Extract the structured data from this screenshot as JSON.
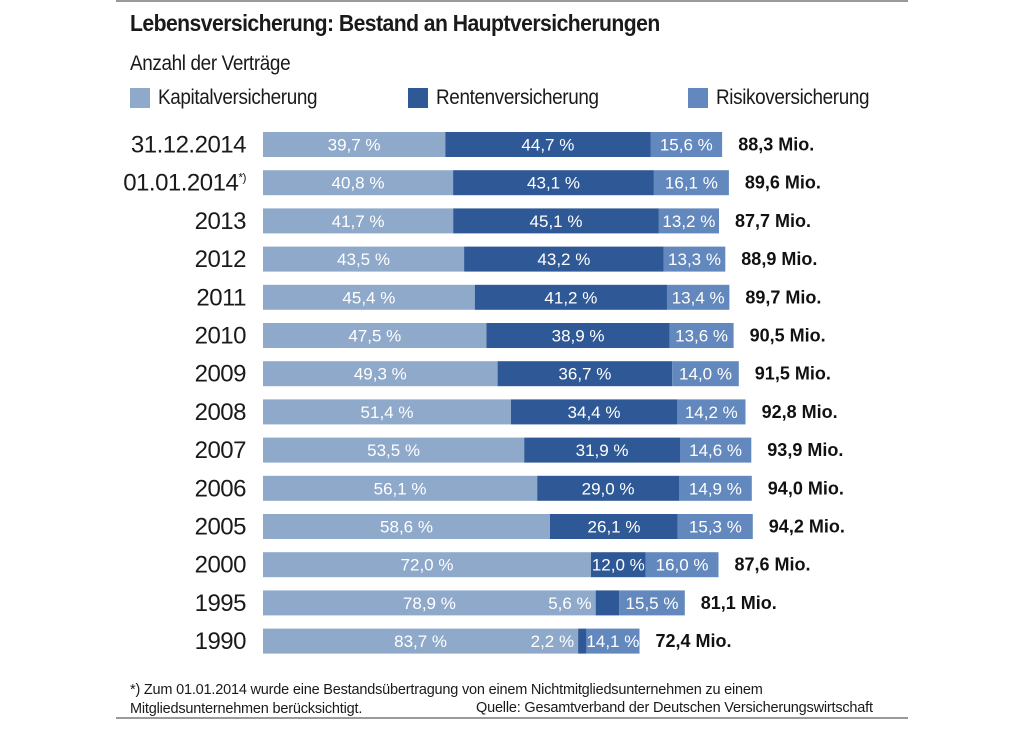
{
  "chart_data": {
    "type": "bar",
    "orientation": "horizontal",
    "stacked": true,
    "title": "Lebensversicherung: Bestand an Hauptversicherungen",
    "subtitle": "Anzahl der Verträge",
    "xlabel": "",
    "ylabel": "",
    "unit": "%",
    "grid": false,
    "legend_position": "top",
    "categories": [
      "31.12.2014",
      "01.01.2014*)",
      "2013",
      "2012",
      "2011",
      "2010",
      "2009",
      "2008",
      "2007",
      "2006",
      "2005",
      "2000",
      "1995",
      "1990"
    ],
    "series": [
      {
        "name": "Kapitalversicherung",
        "color": "#8fa9cb",
        "values": [
          39.7,
          40.8,
          41.7,
          43.5,
          45.4,
          47.5,
          49.3,
          51.4,
          53.5,
          56.1,
          58.6,
          72.0,
          78.9,
          83.7
        ],
        "labels": [
          "39,7 %",
          "40,8 %",
          "41,7 %",
          "43,5 %",
          "45,4 %",
          "47,5 %",
          "49,3 %",
          "51,4 %",
          "53,5 %",
          "56,1 %",
          "58,6 %",
          "72,0 %",
          "78,9 %",
          "83,7 %"
        ]
      },
      {
        "name": "Rentenversicherung",
        "color": "#2f5996",
        "values": [
          44.7,
          43.1,
          45.1,
          43.2,
          41.2,
          38.9,
          36.7,
          34.4,
          31.9,
          29.0,
          26.1,
          12.0,
          5.6,
          2.2
        ],
        "labels": [
          "44,7 %",
          "43,1 %",
          "45,1 %",
          "43,2 %",
          "41,2 %",
          "38,9 %",
          "36,7 %",
          "34,4 %",
          "31,9 %",
          "29,0 %",
          "26,1 %",
          "12,0 %",
          "5,6 %",
          "2,2 %"
        ]
      },
      {
        "name": "Risikoversicherung",
        "color": "#6288bd",
        "values": [
          15.6,
          16.1,
          13.2,
          13.3,
          13.4,
          13.6,
          14.0,
          14.2,
          14.6,
          14.9,
          15.3,
          16.0,
          15.5,
          14.1
        ],
        "labels": [
          "15,6 %",
          "16,1 %",
          "13,2 %",
          "13,3 %",
          "13,4 %",
          "13,6 %",
          "14,0 %",
          "14,2 %",
          "14,6 %",
          "14,9 %",
          "15,3 %",
          "16,0 %",
          "15,5 %",
          "14,1 %"
        ]
      }
    ],
    "totals_mio": [
      88.3,
      89.6,
      87.7,
      88.9,
      89.7,
      90.5,
      91.5,
      92.8,
      93.9,
      94.0,
      94.2,
      87.6,
      81.1,
      72.4
    ],
    "totals_labels": [
      "88,3 Mio.",
      "89,6 Mio.",
      "87,7 Mio.",
      "88,9 Mio.",
      "89,7 Mio.",
      "90,5 Mio.",
      "91,5 Mio.",
      "92,8 Mio.",
      "93,9 Mio.",
      "94,0 Mio.",
      "94,2 Mio.",
      "87,6 Mio.",
      "81,1 Mio.",
      "72,4 Mio."
    ]
  },
  "header": {
    "title": "Lebensversicherung: Bestand an Hauptversicherungen",
    "subtitle": "Anzahl der Verträge"
  },
  "legend": [
    {
      "label": "Kapitalversicherung",
      "color": "#8fa9cb"
    },
    {
      "label": "Rentenversicherung",
      "color": "#2f5996"
    },
    {
      "label": "Risikoversicherung",
      "color": "#6288bd"
    }
  ],
  "footer": {
    "footnote_line1": "*) Zum 01.01.2014 wurde eine Bestandsübertragung von einem Nichtmitgliedsunternehmen zu einem",
    "footnote_line2": "Mitgliedsunternehmen berücksichtigt.",
    "source": "Quelle: Gesamtverband der Deutschen Versicherungswirtschaft"
  }
}
